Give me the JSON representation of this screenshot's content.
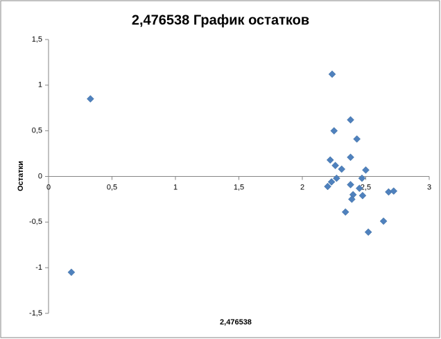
{
  "chart_data": {
    "type": "scatter",
    "title": "2,476538 График остатков",
    "x_label": "2,476538",
    "y_label": "Остатки",
    "color": "#4f81bd",
    "x": [
      0.33,
      0.18,
      2.235,
      2.25,
      2.38,
      2.43,
      2.22,
      2.26,
      2.38,
      2.31,
      2.27,
      2.23,
      2.2,
      2.38,
      2.5,
      2.47,
      2.45,
      2.4,
      2.39,
      2.475,
      2.34,
      2.64,
      2.52,
      2.68,
      2.72
    ],
    "values": [
      0.85,
      -1.05,
      1.12,
      0.5,
      0.62,
      0.41,
      0.18,
      0.12,
      0.21,
      0.08,
      -0.02,
      -0.06,
      -0.11,
      -0.09,
      0.07,
      -0.02,
      -0.13,
      -0.2,
      -0.25,
      -0.21,
      -0.39,
      -0.49,
      -0.61,
      -0.17,
      -0.16
    ],
    "xlim": [
      0,
      3
    ],
    "ylim": [
      -1.5,
      1.5
    ],
    "xticks": [
      0,
      {
        "value": 0.5,
        "label": "0,5"
      },
      1,
      {
        "value": 1.5,
        "label": "1,5"
      },
      2,
      {
        "value": 2.5,
        "label": "2,5"
      },
      3
    ],
    "yticks": [
      {
        "value": -1.5,
        "label": "-1,5"
      },
      -1,
      {
        "value": -0.5,
        "label": "-0,5"
      },
      0,
      {
        "value": 0.5,
        "label": "0,5"
      },
      1,
      {
        "value": 1.5,
        "label": "1,5"
      }
    ]
  }
}
